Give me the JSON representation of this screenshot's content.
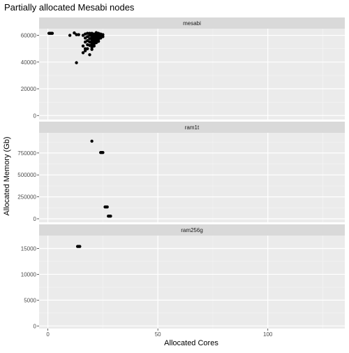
{
  "chart_data": {
    "type": "scatter",
    "title": "Partially allocated Mesabi nodes",
    "xlabel": "Allocated Cores",
    "ylabel": "Allocated Memory (Gb)",
    "xlim": [
      -4,
      135
    ],
    "x_ticks": [
      0,
      50,
      100
    ],
    "x_tick_labels": [
      "0",
      "50",
      "100"
    ],
    "x_minor_ticks": [
      25,
      75,
      125
    ],
    "grid": true,
    "panel_background": "#ebebeb",
    "strip_background": "#d9d9d9",
    "point_color": "#000000",
    "panels": [
      {
        "label": "mesabi",
        "ylim": [
          -3000,
          65000
        ],
        "y_ticks": [
          0,
          20000,
          40000,
          60000
        ],
        "y_tick_labels": [
          "0",
          "20000",
          "40000",
          "60000"
        ],
        "y_minor_ticks": [
          10000,
          30000,
          50000
        ],
        "points": [
          [
            0.5,
            61500
          ],
          [
            1,
            61500
          ],
          [
            1.5,
            61500
          ],
          [
            2,
            61500
          ],
          [
            10,
            60000
          ],
          [
            12,
            61800
          ],
          [
            13,
            60500
          ],
          [
            14,
            60500
          ],
          [
            13,
            39500
          ],
          [
            16,
            60000
          ],
          [
            16,
            52000
          ],
          [
            16,
            47000
          ],
          [
            17,
            61000
          ],
          [
            17,
            58000
          ],
          [
            17,
            55000
          ],
          [
            17,
            50000
          ],
          [
            17,
            48500
          ],
          [
            18,
            61500
          ],
          [
            18,
            59000
          ],
          [
            18,
            56000
          ],
          [
            18,
            53000
          ],
          [
            18,
            50000
          ],
          [
            19,
            61500
          ],
          [
            19,
            60000
          ],
          [
            19,
            57500
          ],
          [
            19,
            55000
          ],
          [
            19,
            52500
          ],
          [
            19,
            45500
          ],
          [
            20,
            61500
          ],
          [
            20,
            60000
          ],
          [
            20,
            58500
          ],
          [
            20,
            57000
          ],
          [
            20,
            55500
          ],
          [
            20,
            54000
          ],
          [
            20,
            52500
          ],
          [
            20,
            51000
          ],
          [
            20,
            49500
          ],
          [
            21,
            61000
          ],
          [
            21,
            59500
          ],
          [
            21,
            58000
          ],
          [
            21,
            56500
          ],
          [
            21,
            55000
          ],
          [
            21,
            53500
          ],
          [
            21,
            52000
          ],
          [
            22,
            62000
          ],
          [
            22,
            60500
          ],
          [
            22,
            59000
          ],
          [
            22,
            57500
          ],
          [
            22,
            56000
          ],
          [
            22,
            54500
          ],
          [
            23,
            61500
          ],
          [
            23,
            60000
          ],
          [
            23,
            58500
          ],
          [
            23,
            57000
          ],
          [
            23,
            55500
          ],
          [
            24,
            61000
          ],
          [
            24,
            59500
          ],
          [
            24,
            58000
          ],
          [
            25,
            60500
          ],
          [
            25,
            59000
          ]
        ]
      },
      {
        "label": "ram1t",
        "ylim": [
          -40000,
          980000
        ],
        "y_ticks": [
          0,
          250000,
          500000,
          750000
        ],
        "y_tick_labels": [
          "0",
          "250000",
          "500000",
          "750000"
        ],
        "y_minor_ticks": [
          125000,
          375000,
          625000,
          875000
        ],
        "points": [
          [
            20,
            885000
          ],
          [
            24,
            755000
          ],
          [
            24.5,
            755000
          ],
          [
            25,
            755000
          ],
          [
            26,
            135000
          ],
          [
            26.5,
            135000
          ],
          [
            27,
            135000
          ],
          [
            27.5,
            30000
          ],
          [
            28,
            30000
          ],
          [
            28.5,
            30000
          ]
        ]
      },
      {
        "label": "ram256g",
        "ylim": [
          -500,
          17500
        ],
        "y_ticks": [
          0,
          5000,
          10000,
          15000
        ],
        "y_tick_labels": [
          "0",
          "5000",
          "10000",
          "15000"
        ],
        "y_minor_ticks": [
          2500,
          7500,
          12500
        ],
        "points": [
          [
            13.5,
            15400
          ],
          [
            14,
            15400
          ],
          [
            14.5,
            15400
          ]
        ]
      }
    ]
  }
}
